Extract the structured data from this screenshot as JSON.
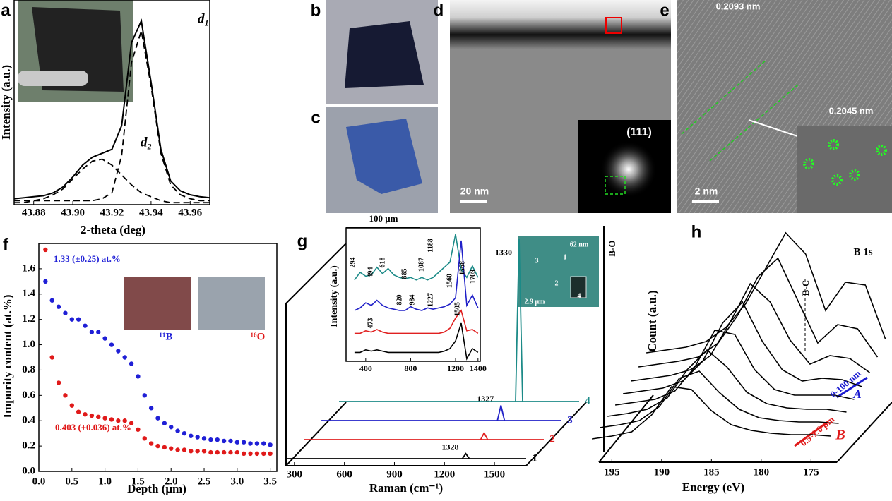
{
  "panel_labels": [
    "a",
    "b",
    "c",
    "d",
    "e",
    "f",
    "g",
    "h"
  ],
  "micrographs": {
    "d_scale_bar": "20 nm",
    "d_inset_label": "(111)",
    "e_scale_bar": "2 nm",
    "e_spacings": [
      "0.2093 nm",
      "0.2045 nm"
    ]
  },
  "chart_data": [
    {
      "type": "line",
      "xlabel": "2-theta  (deg)",
      "ylabel": "Intensity (a.u.)",
      "annotations": [
        "d₁",
        "d₂"
      ],
      "x": [
        43.87,
        43.875,
        43.88,
        43.885,
        43.89,
        43.895,
        43.9,
        43.905,
        43.91,
        43.915,
        43.92,
        43.925,
        43.93,
        43.935,
        43.94,
        43.945,
        43.95,
        43.955,
        43.96,
        43.965,
        43.97
      ],
      "series": [
        {
          "color": "#000000",
          "dash": false,
          "values": [
            0.03,
            0.035,
            0.04,
            0.045,
            0.06,
            0.09,
            0.14,
            0.2,
            0.24,
            0.26,
            0.28,
            0.4,
            0.82,
            0.93,
            0.62,
            0.28,
            0.12,
            0.07,
            0.05,
            0.04,
            0.035
          ]
        },
        {
          "color": "#000000",
          "dash": true,
          "values": [
            0.02,
            0.02,
            0.02,
            0.02,
            0.02,
            0.02,
            0.02,
            0.02,
            0.02,
            0.03,
            0.06,
            0.25,
            0.72,
            0.88,
            0.6,
            0.26,
            0.1,
            0.05,
            0.03,
            0.02,
            0.02
          ]
        },
        {
          "color": "#000000",
          "dash": true,
          "values": [
            0.01,
            0.01,
            0.02,
            0.03,
            0.05,
            0.08,
            0.13,
            0.18,
            0.22,
            0.23,
            0.2,
            0.15,
            0.1,
            0.06,
            0.04,
            0.02,
            0.01,
            0.01,
            0.01,
            0.01,
            0.01
          ]
        }
      ],
      "xlim": [
        43.87,
        43.97
      ],
      "xticks": [
        43.88,
        {
          "value": 43.9,
          "label": "43.90"
        },
        43.92,
        43.94,
        43.96
      ],
      "ylim": [
        0,
        1
      ]
    },
    {
      "type": "scatter",
      "xlabel": "Depth (μm)",
      "ylabel": "Impurity content (at.%)",
      "annotations": [
        "1.33 (±0.25) at.%",
        "0.403 (±0.036) at.%"
      ],
      "x": [
        0.1,
        0.2,
        0.3,
        0.4,
        0.5,
        0.6,
        0.7,
        0.8,
        0.9,
        1.0,
        1.1,
        1.2,
        1.3,
        1.4,
        1.5,
        1.6,
        1.7,
        1.8,
        1.9,
        2.0,
        2.1,
        2.2,
        2.3,
        2.4,
        2.5,
        2.6,
        2.7,
        2.8,
        2.9,
        3.0,
        3.1,
        3.2,
        3.3,
        3.4,
        3.5
      ],
      "series": [
        {
          "name": "¹¹B",
          "color": "#1f1fd6",
          "values": [
            1.5,
            1.35,
            1.3,
            1.25,
            1.2,
            1.2,
            1.15,
            1.1,
            1.1,
            1.05,
            1.0,
            0.95,
            0.9,
            0.85,
            0.75,
            0.6,
            0.5,
            0.42,
            0.38,
            0.35,
            0.32,
            0.3,
            0.28,
            0.27,
            0.26,
            0.25,
            0.25,
            0.24,
            0.24,
            0.23,
            0.23,
            0.22,
            0.22,
            0.22,
            0.21
          ]
        },
        {
          "name": "¹⁶O",
          "color": "#e01a1a",
          "values": [
            1.75,
            0.9,
            0.7,
            0.6,
            0.52,
            0.47,
            0.45,
            0.44,
            0.43,
            0.42,
            0.41,
            0.4,
            0.4,
            0.38,
            0.33,
            0.26,
            0.22,
            0.2,
            0.19,
            0.18,
            0.17,
            0.17,
            0.16,
            0.16,
            0.16,
            0.15,
            0.15,
            0.15,
            0.15,
            0.15,
            0.14,
            0.14,
            0.14,
            0.14,
            0.14
          ]
        }
      ],
      "xlim": [
        0,
        3.6
      ],
      "xticks": [
        {
          "value": 0,
          "label": "0.0"
        },
        0.5,
        {
          "value": 1,
          "label": "1.0"
        },
        1.5,
        {
          "value": 2,
          "label": "2.0"
        },
        2.5,
        {
          "value": 3,
          "label": "3.0"
        },
        3.5
      ],
      "ylim": [
        0,
        1.8
      ],
      "yticks": [
        {
          "value": 0,
          "label": "0.0"
        },
        0.2,
        0.4,
        0.6,
        0.8,
        {
          "value": 1,
          "label": "1.0"
        },
        1.2,
        1.4,
        1.6
      ]
    },
    {
      "type": "waterfall",
      "xlabel": "Raman (cm⁻¹)",
      "xlim": [
        250,
        1690
      ],
      "xticks": [
        300,
        600,
        900,
        1200,
        1500
      ],
      "ylim": [
        0,
        1
      ],
      "series": [
        {
          "name": "1",
          "color": "#000000",
          "peak_x": 1328,
          "peak_height": 0.03
        },
        {
          "name": "2",
          "color": "#e02020",
          "peak_x": 1332,
          "peak_height": 0.04
        },
        {
          "name": "3",
          "color": "#2020c8",
          "peak_x": 1327,
          "peak_height": 0.09
        },
        {
          "name": "4",
          "color": "#1b8a87",
          "peak_x": 1330,
          "peak_height": 0.96
        }
      ],
      "inset": {
        "type": "line",
        "ylabel": "Intensity (a.u.)",
        "x": [
          300,
          350,
          400,
          450,
          500,
          550,
          600,
          650,
          700,
          750,
          800,
          850,
          900,
          950,
          1000,
          1050,
          1100,
          1150,
          1200,
          1250,
          1300,
          1350,
          1400
        ],
        "series": [
          {
            "color": "#1b8a87",
            "values": [
              0.64,
              0.7,
              0.67,
              0.68,
              0.74,
              0.69,
              0.73,
              0.68,
              0.66,
              0.65,
              0.66,
              0.64,
              0.66,
              0.64,
              0.66,
              0.7,
              0.74,
              0.78,
              1.0,
              0.72,
              0.66,
              0.75,
              0.66
            ]
          },
          {
            "color": "#2020c8",
            "values": [
              0.4,
              0.42,
              0.46,
              0.44,
              0.48,
              0.44,
              0.42,
              0.41,
              0.4,
              0.4,
              0.43,
              0.41,
              0.4,
              0.42,
              0.41,
              0.42,
              0.43,
              0.45,
              0.5,
              0.95,
              0.44,
              0.52,
              0.42
            ]
          },
          {
            "color": "#e02020",
            "values": [
              0.22,
              0.22,
              0.24,
              0.23,
              0.25,
              0.23,
              0.22,
              0.22,
              0.22,
              0.22,
              0.22,
              0.22,
              0.22,
              0.22,
              0.22,
              0.22,
              0.23,
              0.26,
              0.34,
              0.4,
              0.24,
              0.25,
              0.22
            ]
          },
          {
            "color": "#000000",
            "values": [
              0.07,
              0.07,
              0.09,
              0.08,
              0.09,
              0.08,
              0.07,
              0.07,
              0.07,
              0.07,
              0.07,
              0.07,
              0.07,
              0.07,
              0.07,
              0.07,
              0.08,
              0.1,
              0.16,
              0.3,
              0.02,
              0.1,
              0.07
            ]
          }
        ],
        "xlim": [
          225,
          1420
        ],
        "xticks": [
          400,
          800,
          1200,
          1400
        ],
        "ylim": [
          0,
          1.05
        ],
        "peak_labels": [
          294,
          494,
          618,
          885,
          1087,
          1188,
          1560,
          1568,
          1709,
          820,
          984,
          1227,
          1505,
          473
        ]
      },
      "micrograph": {
        "scale_bar": "100 μm",
        "labels": [
          "62 nm",
          "2.9 μm",
          "1",
          "2",
          "3",
          "4"
        ]
      }
    },
    {
      "type": "waterfall",
      "xlabel": "Energy (eV)",
      "ylabel": "Count (a.u.)",
      "color": "#000000",
      "annotations": [
        "B-O",
        "B-C",
        "B 1s",
        "0-100 nm",
        "0.5-1.0 μm",
        "A",
        "B"
      ],
      "x": [
        197,
        195,
        193,
        191,
        189,
        187,
        185,
        183,
        181,
        179,
        177,
        175,
        173
      ],
      "series": [
        {
          "values": [
            0.1,
            0.12,
            0.14,
            0.18,
            0.28,
            0.45,
            0.7,
            0.95,
            0.8,
            0.4,
            0.6,
            0.58,
            0.2
          ]
        },
        {
          "values": [
            0.08,
            0.1,
            0.12,
            0.15,
            0.25,
            0.45,
            0.72,
            0.85,
            0.55,
            0.25,
            0.38,
            0.35,
            0.15
          ]
        },
        {
          "values": [
            0.06,
            0.08,
            0.1,
            0.14,
            0.24,
            0.48,
            0.75,
            0.62,
            0.35,
            0.18,
            0.24,
            0.22,
            0.12
          ]
        },
        {
          "values": [
            0.05,
            0.07,
            0.09,
            0.14,
            0.28,
            0.55,
            0.7,
            0.42,
            0.22,
            0.14,
            0.16,
            0.15,
            0.1
          ]
        },
        {
          "values": [
            0.05,
            0.07,
            0.09,
            0.15,
            0.32,
            0.58,
            0.55,
            0.3,
            0.16,
            0.12,
            0.12,
            0.12,
            0.09
          ]
        },
        {
          "values": [
            0.05,
            0.07,
            0.1,
            0.18,
            0.38,
            0.52,
            0.4,
            0.22,
            0.14,
            0.11,
            0.1,
            0.1,
            0.08
          ]
        },
        {
          "values": [
            0.05,
            0.07,
            0.1,
            0.2,
            0.4,
            0.45,
            0.3,
            0.18,
            0.12,
            0.1,
            0.09,
            0.09,
            0.08
          ]
        },
        {
          "values": [
            0.05,
            0.07,
            0.1,
            0.22,
            0.42,
            0.4,
            0.25,
            0.15,
            0.11,
            0.09,
            0.08,
            0.08,
            0.07
          ]
        }
      ],
      "xlim": [
        196.3,
        172.4
      ],
      "xticks": [
        195,
        190,
        185,
        180,
        175
      ],
      "ylim": [
        0,
        1
      ]
    }
  ]
}
